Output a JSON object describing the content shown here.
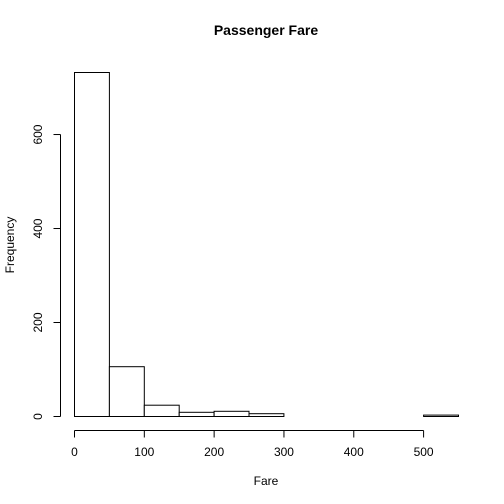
{
  "chart_data": {
    "type": "bar",
    "title": "Passenger Fare",
    "xlabel": "Fare",
    "ylabel": "Frequency",
    "bin_edges": [
      0,
      50,
      100,
      150,
      200,
      250,
      300,
      350,
      400,
      450,
      500,
      550
    ],
    "values": [
      732,
      106,
      24,
      9,
      11,
      6,
      0,
      0,
      0,
      0,
      3
    ],
    "xlim": [
      0,
      550
    ],
    "ylim": [
      0,
      732
    ],
    "x_ticks": [
      0,
      100,
      200,
      300,
      400,
      500
    ],
    "y_ticks": [
      0,
      200,
      400,
      600
    ],
    "grid": false,
    "legend": "none"
  }
}
